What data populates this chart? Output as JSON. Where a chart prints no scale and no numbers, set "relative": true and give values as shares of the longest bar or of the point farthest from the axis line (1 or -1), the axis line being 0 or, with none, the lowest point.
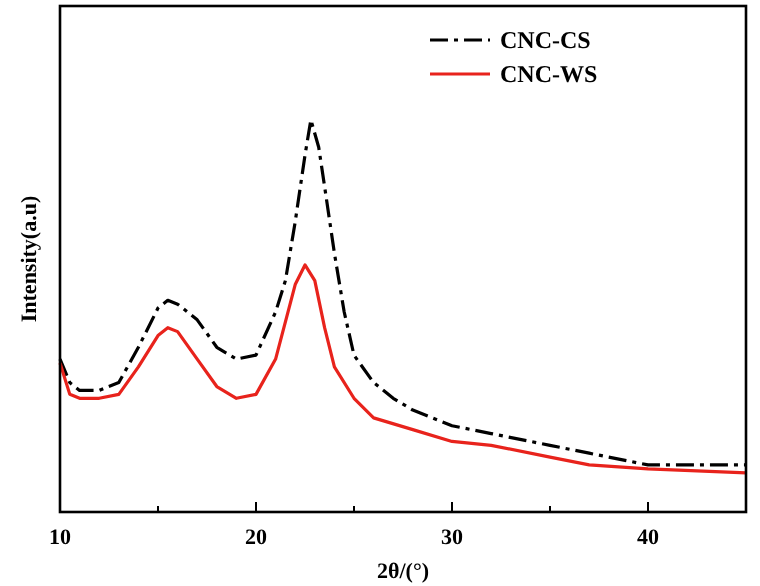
{
  "chart_data": {
    "type": "line",
    "xlabel": "2θ/(°)",
    "ylabel": "Intensity(a.u)",
    "relative": true,
    "xlim": [
      10,
      45
    ],
    "xticks": [
      10,
      {
        "value": 15,
        "label": null
      },
      20,
      {
        "value": 25,
        "label": null
      },
      30,
      {
        "value": 35,
        "label": null
      },
      40
    ],
    "legend": "top right",
    "grid": false,
    "series": [
      {
        "name": "CNC-CS",
        "color": "#000000",
        "line_style": "dashed",
        "x": [
          10,
          10.5,
          11,
          12,
          13,
          14,
          15,
          15.5,
          16,
          17,
          18,
          19,
          20,
          21,
          21.5,
          22,
          22.5,
          22.8,
          23.2,
          23.5,
          24,
          24.5,
          25,
          26,
          27,
          28,
          30,
          32,
          35,
          37,
          40,
          45
        ],
        "values": [
          0.39,
          0.33,
          0.31,
          0.31,
          0.33,
          0.42,
          0.52,
          0.54,
          0.53,
          0.49,
          0.42,
          0.39,
          0.4,
          0.51,
          0.59,
          0.74,
          0.91,
          1,
          0.93,
          0.83,
          0.66,
          0.51,
          0.4,
          0.33,
          0.29,
          0.26,
          0.22,
          0.2,
          0.17,
          0.15,
          0.12,
          0.12
        ]
      },
      {
        "name": "CNC-WS",
        "color": "#e8231c",
        "line_style": "solid",
        "x": [
          10,
          10.5,
          11,
          12,
          13,
          14,
          15,
          15.5,
          16,
          17,
          18,
          19,
          20,
          21,
          22,
          22.5,
          23,
          23.5,
          24,
          25,
          26,
          28,
          30,
          32,
          35,
          37,
          40,
          45
        ],
        "values": [
          0.38,
          0.3,
          0.29,
          0.29,
          0.3,
          0.37,
          0.45,
          0.47,
          0.46,
          0.39,
          0.32,
          0.29,
          0.3,
          0.39,
          0.58,
          0.63,
          0.59,
          0.47,
          0.37,
          0.29,
          0.24,
          0.21,
          0.18,
          0.17,
          0.14,
          0.12,
          0.11,
          0.1
        ]
      }
    ]
  }
}
